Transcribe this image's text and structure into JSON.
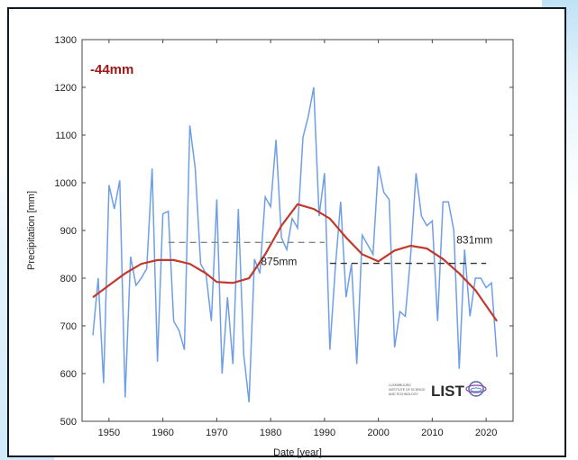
{
  "chart_data": {
    "type": "line",
    "xlabel": "Date [year]",
    "ylabel": "Precipitation [mm]",
    "xlim": [
      1945,
      2025
    ],
    "ylim": [
      500,
      1300
    ],
    "xticks": [
      1950,
      1960,
      1970,
      1980,
      1990,
      2000,
      2010,
      2020
    ],
    "yticks": [
      500,
      600,
      700,
      800,
      900,
      1000,
      1100,
      1200,
      1300
    ],
    "grid": false,
    "annotations": {
      "change_label": "-44mm",
      "mean_early_label": "875mm",
      "mean_late_label": "831mm"
    },
    "series": [
      {
        "style": "annual",
        "color": "#6f9ee8",
        "x": [
          1947,
          1948,
          1949,
          1950,
          1951,
          1952,
          1953,
          1954,
          1955,
          1956,
          1957,
          1958,
          1959,
          1960,
          1961,
          1962,
          1963,
          1964,
          1965,
          1966,
          1967,
          1968,
          1969,
          1970,
          1971,
          1972,
          1973,
          1974,
          1975,
          1976,
          1977,
          1978,
          1979,
          1980,
          1981,
          1982,
          1983,
          1984,
          1985,
          1986,
          1987,
          1988,
          1989,
          1990,
          1991,
          1992,
          1993,
          1994,
          1995,
          1996,
          1997,
          1998,
          1999,
          2000,
          2001,
          2002,
          2003,
          2004,
          2005,
          2006,
          2007,
          2008,
          2009,
          2010,
          2011,
          2012,
          2013,
          2014,
          2015,
          2016,
          2017,
          2018,
          2019,
          2020,
          2021,
          2022
        ],
        "y": [
          680,
          800,
          580,
          995,
          945,
          1005,
          550,
          845,
          785,
          800,
          820,
          1030,
          625,
          935,
          940,
          710,
          690,
          650,
          1120,
          1030,
          830,
          810,
          710,
          965,
          600,
          760,
          620,
          945,
          640,
          540,
          840,
          810,
          970,
          950,
          1090,
          885,
          860,
          925,
          905,
          1095,
          1140,
          1200,
          930,
          1020,
          650,
          820,
          960,
          760,
          830,
          620,
          890,
          870,
          850,
          1035,
          980,
          965,
          655,
          730,
          720,
          850,
          1020,
          930,
          910,
          920,
          710,
          960,
          960,
          900,
          610,
          860,
          720,
          800,
          800,
          780,
          790,
          635
        ]
      },
      {
        "style": "smoothed",
        "color": "#c0392b",
        "x": [
          1947,
          1950,
          1953,
          1956,
          1959,
          1962,
          1965,
          1968,
          1970,
          1973,
          1976,
          1979,
          1982,
          1985,
          1988,
          1991,
          1994,
          1997,
          2000,
          2003,
          2006,
          2009,
          2012,
          2015,
          2018,
          2022
        ],
        "y": [
          760,
          785,
          810,
          830,
          838,
          838,
          830,
          810,
          792,
          790,
          800,
          850,
          910,
          955,
          945,
          925,
          885,
          850,
          835,
          858,
          868,
          862,
          840,
          810,
          775,
          710
        ]
      },
      {
        "style": "mean",
        "color": "#888888",
        "x": [
          1961,
          1990
        ],
        "y": [
          875,
          875
        ]
      },
      {
        "style": "mean",
        "color": "#333333",
        "x": [
          1991,
          2020
        ],
        "y": [
          831,
          831
        ]
      }
    ]
  },
  "logo": {
    "name": "LIST",
    "small_text_lines": [
      "LUXEMBOURG",
      "INSTITUTE OF SCIENCE",
      "AND TECHNOLOGY"
    ]
  }
}
